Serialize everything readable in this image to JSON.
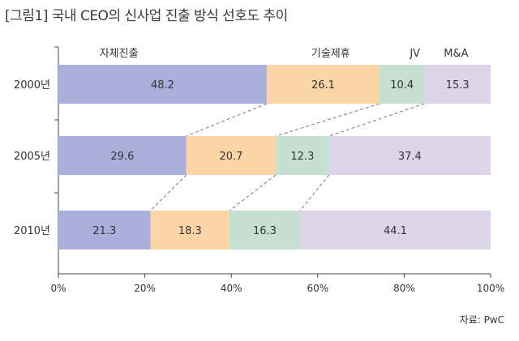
{
  "title": "[그림1] 국내 CEO의 신사업 진출 방식 선호도 추이",
  "source": "자료: PwC",
  "chart_data": {
    "type": "bar",
    "orientation": "horizontal-stacked-100",
    "categories": [
      "2000년",
      "2005년",
      "2010년"
    ],
    "series": [
      {
        "name": "자체진출",
        "values": [
          48.2,
          29.6,
          21.3
        ],
        "color": "#a9aedb"
      },
      {
        "name": "기술제휴",
        "values": [
          26.1,
          20.7,
          18.3
        ],
        "color": "#fcd5a6"
      },
      {
        "name": "JV",
        "values": [
          10.4,
          12.3,
          16.3
        ],
        "color": "#c5e0d3"
      },
      {
        "name": "M&A",
        "values": [
          15.3,
          37.4,
          44.1
        ],
        "color": "#dcd5ea"
      }
    ],
    "value_labels": [
      [
        "48.2",
        "26.1",
        "10.4",
        "15.3"
      ],
      [
        "29.6",
        "20.7",
        "12.3",
        "37.4"
      ],
      [
        "21.3",
        "18.3",
        "16.3",
        "44.1"
      ]
    ],
    "x_ticks": [
      "0%",
      "20%",
      "40%",
      "60%",
      "80%",
      "100%"
    ],
    "xlim": [
      0,
      100
    ],
    "legend": "top, above the first bar",
    "connector_lines": "dashed"
  }
}
